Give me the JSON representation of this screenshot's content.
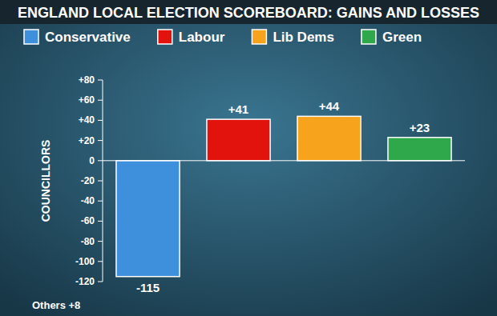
{
  "chart_data": {
    "type": "bar",
    "title": "ENGLAND LOCAL ELECTION SCOREBOARD: GAINS AND LOSSES",
    "categories": [
      "Conservative",
      "Labour",
      "Lib Dems",
      "Green"
    ],
    "values": [
      -115,
      41,
      44,
      23
    ],
    "value_labels": [
      "-115",
      "+41",
      "+44",
      "+23"
    ],
    "colors": [
      "#3e8fdc",
      "#e2120c",
      "#f7a31b",
      "#2ea84a"
    ],
    "ylim": [
      -120,
      80
    ],
    "yticks": [
      {
        "value": 80,
        "label": "+80"
      },
      {
        "value": 60,
        "label": "+60"
      },
      {
        "value": 40,
        "label": "+40"
      },
      {
        "value": 20,
        "label": "+20"
      },
      0,
      -20,
      -40,
      -60,
      -80,
      -100,
      -120
    ],
    "y_label": "COUNCILLORS",
    "annotation": "Others +8",
    "grid": false,
    "legend": "top",
    "data_labels": true,
    "tick_labels": "y"
  }
}
